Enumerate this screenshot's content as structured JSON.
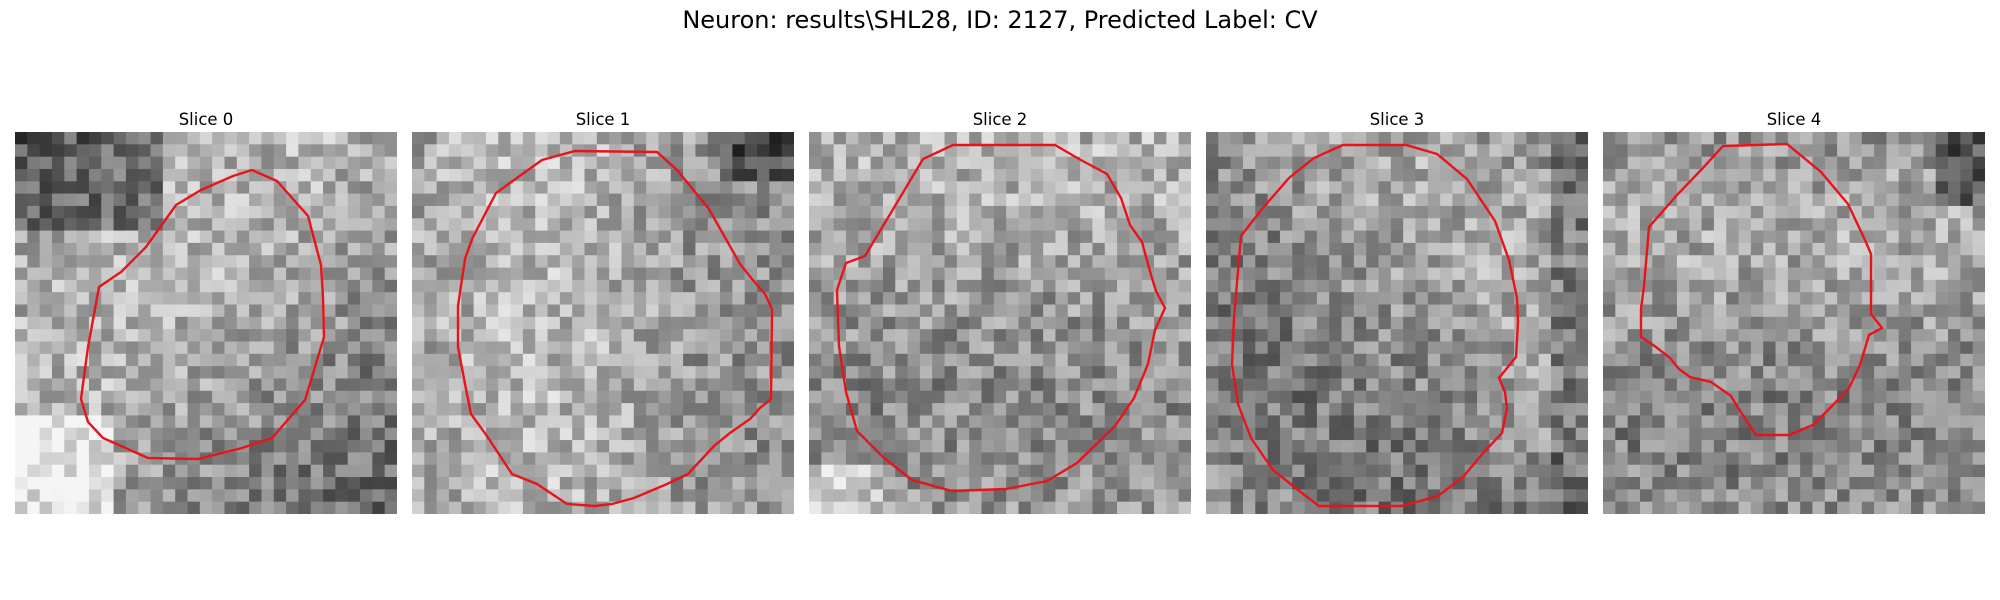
{
  "figure": {
    "title": "Neuron: results\\SHL28, ID: 2127, Predicted Label: CV"
  },
  "panels": [
    {
      "title": "Slice 0",
      "outline_color": "#e8141b",
      "image": "grayscale microscopy patch with red cell outline"
    },
    {
      "title": "Slice 1",
      "outline_color": "#e8141b",
      "image": "grayscale microscopy patch with red cell outline"
    },
    {
      "title": "Slice 2",
      "outline_color": "#e8141b",
      "image": "grayscale microscopy patch with red cell outline"
    },
    {
      "title": "Slice 3",
      "outline_color": "#e8141b",
      "image": "grayscale microscopy patch with red cell outline"
    },
    {
      "title": "Slice 4",
      "outline_color": "#e8141b",
      "image": "grayscale microscopy patch with red cell outline"
    }
  ]
}
